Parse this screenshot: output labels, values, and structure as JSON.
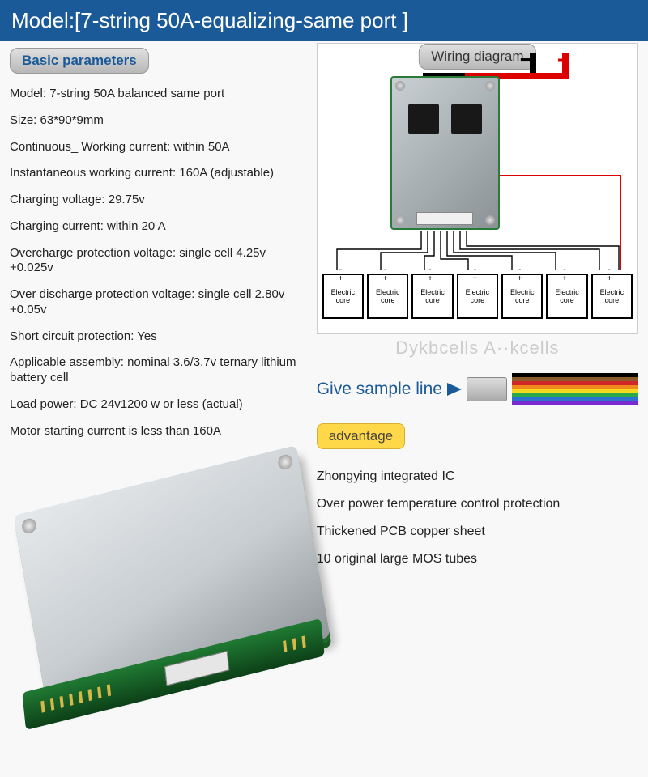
{
  "header": {
    "title": "Model:[7-string 50A-equalizing-same port ]"
  },
  "basic_params": {
    "label": "Basic parameters",
    "items": [
      "Model: 7-string 50A balanced same port",
      "Size: 63*90*9mm",
      "Continuous_ Working current: within 50A",
      "Instantaneous working current: 160A (adjustable)",
      "Charging voltage: 29.75v",
      "Charging current: within 20 A",
      "Overcharge protection voltage: single cell 4.25v +0.025v",
      "Over discharge protection voltage: single cell 2.80v +0.05v",
      "Short circuit protection: Yes",
      "Applicable assembly: nominal 3.6/3.7v ternary lithium battery cell",
      "Load power: DC 24v1200 w or less (actual)",
      "Motor starting current is less than 160A"
    ]
  },
  "wiring": {
    "label": "Wiring diagram",
    "neg_symbol": "−",
    "pos_symbol": "+",
    "cell_label": "Electric core",
    "cell_count": 7
  },
  "watermark": "Dykbcells  A··kcells",
  "sample": {
    "text": "Give sample line",
    "ribbon_colors": [
      "#000000",
      "#8a5a2b",
      "#d02828",
      "#f08a1c",
      "#f5d820",
      "#2aa84a",
      "#2a71d0",
      "#7a2ad0"
    ]
  },
  "advantage": {
    "label": "advantage",
    "items": [
      "Zhongying integrated IC",
      "Over power temperature control protection",
      "Thickened PCB copper sheet",
      "10 original large MOS tubes"
    ]
  },
  "colors": {
    "header_bg": "#1b5a99",
    "pcb_green": "#1f7a32",
    "red": "#d02828"
  }
}
